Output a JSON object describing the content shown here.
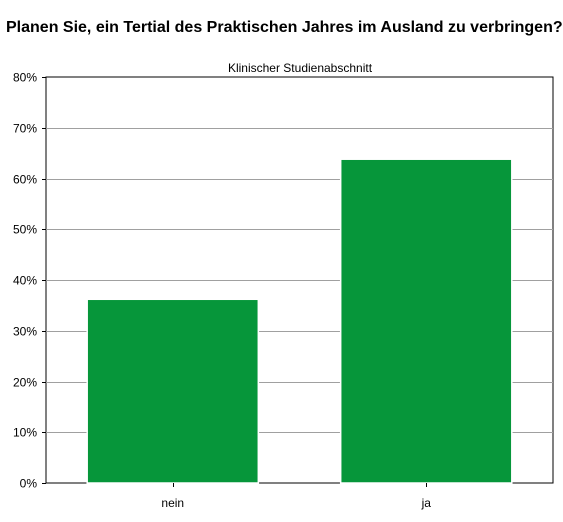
{
  "chart_data": {
    "type": "bar",
    "title": "Planen Sie, ein Tertial des Praktischen Jahres im Ausland zu verbringen?",
    "subtitle": "Klinischer Studienabschnitt",
    "categories": [
      "nein",
      "ja"
    ],
    "values": [
      36.2,
      63.8
    ],
    "ylim": [
      0,
      80
    ],
    "yticks": [
      "0%",
      "10%",
      "20%",
      "30%",
      "40%",
      "50%",
      "60%",
      "70%",
      "80%"
    ],
    "grid": true,
    "bar_color": "#06963a",
    "grid_color": "#a0a0a0"
  }
}
